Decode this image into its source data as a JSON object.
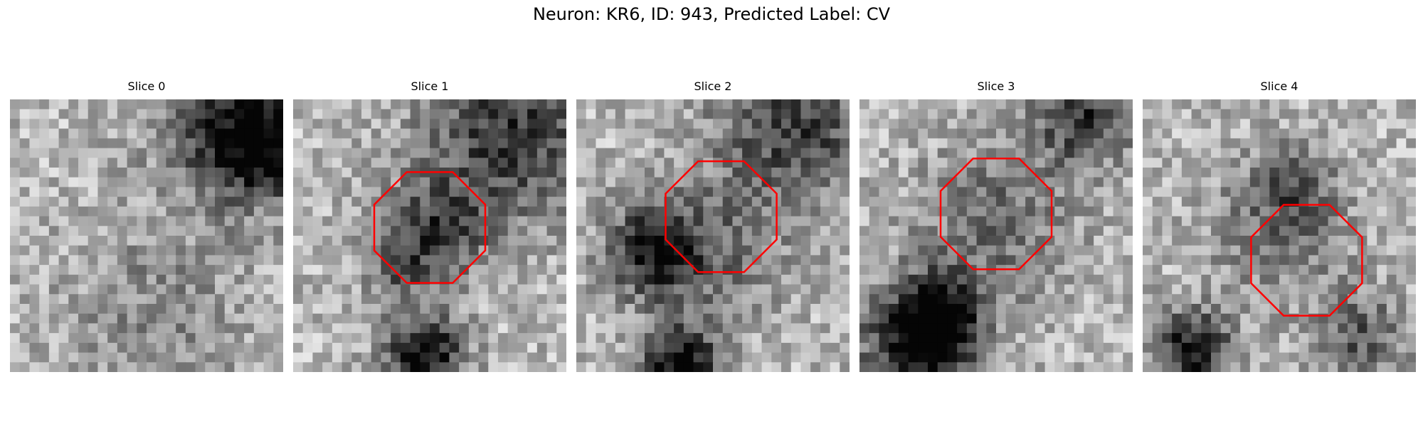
{
  "figure": {
    "title": "Neuron: KR6, ID: 943, Predicted Label: CV"
  },
  "slices": [
    {
      "title": "Slice 0",
      "seed": 11,
      "outline": false,
      "darks": [
        [
          0.82,
          0.1,
          0.18,
          0.75
        ],
        [
          0.95,
          0.2,
          0.12,
          0.6
        ],
        [
          0.55,
          0.78,
          0.25,
          0.25
        ]
      ]
    },
    {
      "title": "Slice 1",
      "seed": 23,
      "outline": true,
      "darks": [
        [
          0.8,
          0.12,
          0.22,
          0.7
        ],
        [
          0.52,
          0.48,
          0.13,
          0.6
        ],
        [
          0.48,
          0.93,
          0.1,
          0.95
        ],
        [
          0.38,
          0.62,
          0.08,
          0.4
        ]
      ]
    },
    {
      "title": "Slice 2",
      "seed": 37,
      "outline": true,
      "darks": [
        [
          0.8,
          0.1,
          0.2,
          0.65
        ],
        [
          0.28,
          0.55,
          0.12,
          0.75
        ],
        [
          0.5,
          0.56,
          0.19,
          0.35
        ],
        [
          0.38,
          0.97,
          0.1,
          0.95
        ]
      ]
    },
    {
      "title": "Slice 3",
      "seed": 51,
      "outline": true,
      "darks": [
        [
          0.82,
          0.05,
          0.13,
          0.7
        ],
        [
          0.5,
          0.45,
          0.2,
          0.4
        ],
        [
          0.22,
          0.9,
          0.15,
          0.95
        ],
        [
          0.3,
          0.78,
          0.1,
          0.6
        ]
      ]
    },
    {
      "title": "Slice 4",
      "seed": 67,
      "outline": true,
      "darks": [
        [
          0.18,
          0.92,
          0.1,
          0.9
        ],
        [
          0.5,
          0.48,
          0.18,
          0.35
        ],
        [
          0.55,
          0.3,
          0.1,
          0.4
        ],
        [
          0.8,
          0.88,
          0.12,
          0.5
        ]
      ]
    }
  ],
  "colors": {
    "outline": "#ff0000"
  }
}
